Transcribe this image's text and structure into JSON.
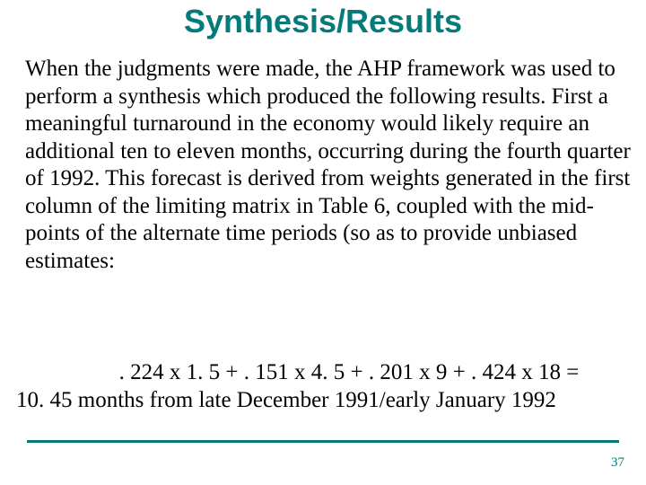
{
  "colors": {
    "title": "#037b7b",
    "body_text": "#000000",
    "rule": "#037b7b",
    "page_number": "#037b7b",
    "background": "#ffffff"
  },
  "title": "Synthesis/Results",
  "body": "When the judgments were made, the AHP framework was used to perform a synthesis which produced the following results.  First a meaningful turnaround in the economy would likely require an additional ten to eleven months, occurring during the fourth quarter of 1992.  This forecast is derived from weights generated in the first column of the limiting matrix in Table 6, coupled with the mid-points of the alternate time periods (so as to provide unbiased estimates:",
  "calc": {
    "line1": ". 224 x 1. 5 + . 151 x 4. 5 + . 201 x 9 + . 424 x 18 =",
    "line2": "10. 45 months from late December 1991/early January 1992"
  },
  "page_number": "37",
  "fonts": {
    "title_family": "Arial",
    "title_weight": "bold",
    "title_size_pt": 28,
    "body_family": "Times New Roman",
    "body_size_pt": 19
  }
}
